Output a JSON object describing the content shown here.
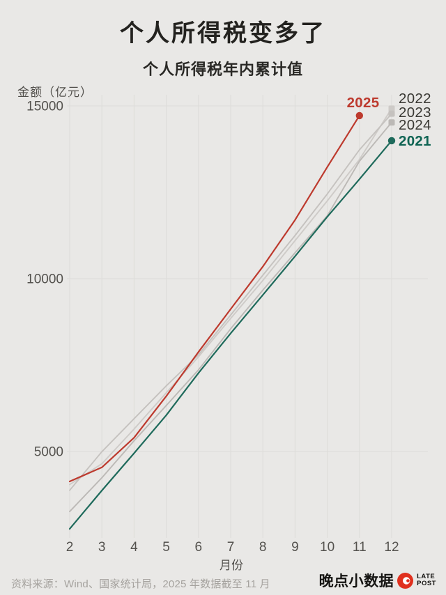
{
  "header": {
    "title": "个人所得税变多了",
    "subtitle": "个人所得税年内累计值"
  },
  "chart_data": {
    "type": "line",
    "title": "个人所得税年内累计值",
    "unit_label": "金额（亿元）",
    "xlabel": "月份",
    "x": [
      2,
      3,
      4,
      5,
      6,
      7,
      8,
      9,
      10,
      11,
      12
    ],
    "y_ticks": [
      5000,
      10000,
      15000
    ],
    "ylim": [
      2500,
      15400
    ],
    "xlim": [
      2,
      12
    ],
    "grid": true,
    "legend_position": "line-end-labels-right",
    "series": [
      {
        "name": "2022",
        "color": "#cecbc8",
        "label_color": "#3a3934",
        "bold_label": false,
        "endpoint": "square",
        "values": [
          4043,
          4645,
          5650,
          6700,
          7740,
          8850,
          9950,
          11100,
          12250,
          13450,
          14923
        ]
      },
      {
        "name": "2023",
        "color": "#c5c2bf",
        "label_color": "#3a3934",
        "bold_label": false,
        "endpoint": "square",
        "values": [
          3878,
          4994,
          5950,
          6900,
          7800,
          8950,
          10100,
          11250,
          12450,
          13730,
          14775
        ]
      },
      {
        "name": "2024",
        "color": "#bcb9b6",
        "label_color": "#3a3934",
        "bold_label": false,
        "endpoint": "square",
        "values": [
          3262,
          4240,
          5310,
          6330,
          7360,
          8550,
          9670,
          10750,
          11820,
          13400,
          14522
        ]
      },
      {
        "name": "2021",
        "color": "#1e6a5b",
        "label_color": "#0f6453",
        "bold_label": true,
        "endpoint": "circle",
        "values": [
          2760,
          3870,
          4950,
          6050,
          7270,
          8420,
          9530,
          10650,
          11790,
          12880,
          13993
        ]
      },
      {
        "name": "2025",
        "color": "#bd3a2e",
        "label_color": "#bd3a2e",
        "bold_label": true,
        "endpoint": "circle",
        "values": [
          4134,
          4540,
          5400,
          6600,
          7880,
          9120,
          10350,
          11700,
          13230,
          14720,
          null
        ]
      }
    ]
  },
  "footer": {
    "source": "资料来源：Wind、国家统计局，2025 年数据截至 11 月",
    "brand": "晚点小数据",
    "brand_sub1": "LATE",
    "brand_sub2": "POST"
  }
}
